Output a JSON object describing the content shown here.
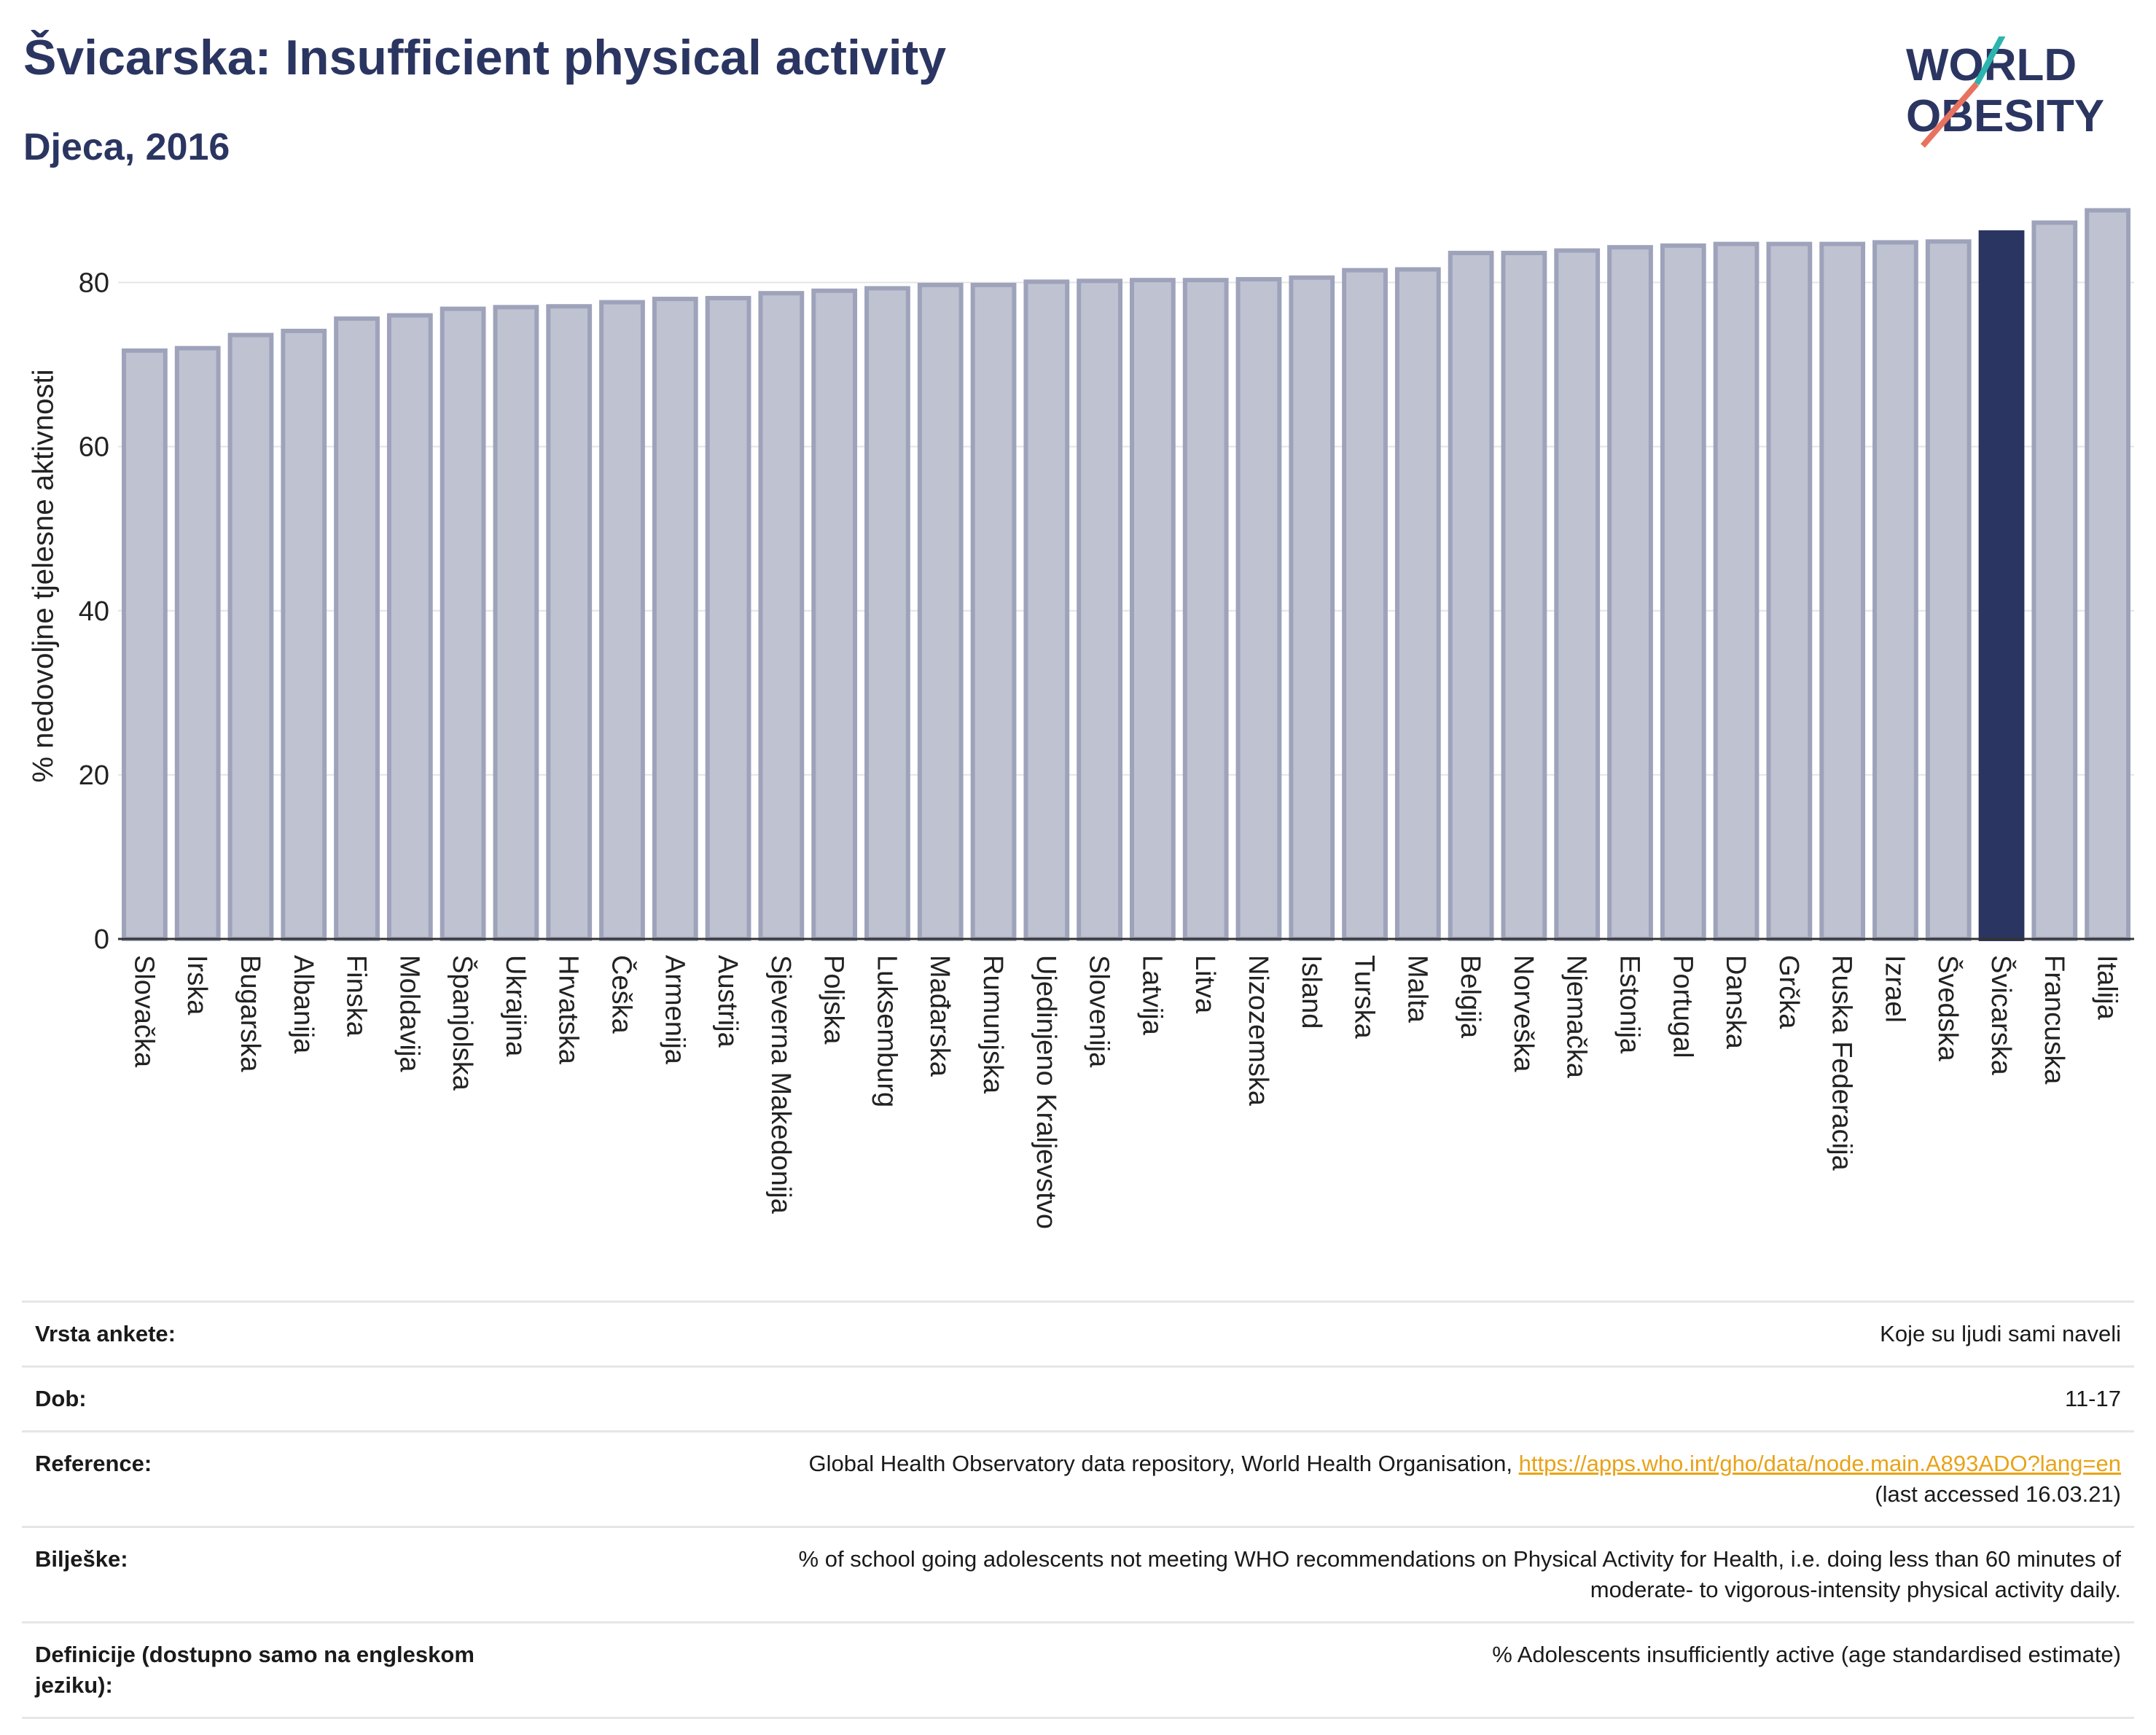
{
  "header": {
    "title": "Švicarska: Insufficient physical activity",
    "subtitle": "Djeca, 2016",
    "logo_line1": "WORLD",
    "logo_line2": "OBESITY"
  },
  "colors": {
    "bar_fill": "#bfc2d0",
    "bar_stroke": "#9ea3bb",
    "highlight": "#2b3561",
    "title": "#2b3561",
    "link": "#e8a317"
  },
  "chart_data": {
    "type": "bar",
    "title": "Švicarska: Insufficient physical activity",
    "subtitle": "Djeca, 2016",
    "ylabel": "% nedovoljne tjelesne aktivnosti",
    "xlabel": "",
    "ylim": [
      0,
      90
    ],
    "yticks": [
      0,
      20,
      40,
      60,
      80
    ],
    "grid": true,
    "highlight": "Švicarska",
    "categories": [
      "Slovačka",
      "Irska",
      "Bugarska",
      "Albanija",
      "Finska",
      "Moldavija",
      "Španjolska",
      "Ukrajina",
      "Hrvatska",
      "Češka",
      "Armenija",
      "Austrija",
      "Sjeverna Makedonija",
      "Poljska",
      "Luksemburg",
      "Mađarska",
      "Rumunjska",
      "Ujedinjeno Kraljevstvo",
      "Slovenija",
      "Latvija",
      "Litva",
      "Nizozemska",
      "Island",
      "Turska",
      "Malta",
      "Belgija",
      "Norveška",
      "Njemačka",
      "Estonija",
      "Portugal",
      "Danska",
      "Grčka",
      "Ruska Federacija",
      "Izrael",
      "Švedska",
      "Švicarska",
      "Francuska",
      "Italija"
    ],
    "values": [
      71.7,
      72.0,
      73.6,
      74.1,
      75.6,
      76.0,
      76.8,
      77.0,
      77.1,
      77.6,
      78.0,
      78.1,
      78.7,
      79.0,
      79.3,
      79.7,
      79.7,
      80.1,
      80.2,
      80.3,
      80.3,
      80.4,
      80.6,
      81.5,
      81.6,
      83.6,
      83.6,
      83.9,
      84.3,
      84.5,
      84.7,
      84.7,
      84.7,
      84.9,
      85.0,
      86.1,
      87.3,
      88.8
    ]
  },
  "info": {
    "rows": [
      {
        "label": "Vrsta ankete:",
        "value": "Koje su ljudi sami naveli"
      },
      {
        "label": "Dob:",
        "value": "11-17"
      },
      {
        "label": "Reference:",
        "value": "Global Health Observatory data repository, World Health Organisation, ",
        "link": "https://apps.who.int/gho/data/node.main.A893ADO?lang=en",
        "value2": "(last accessed 16.03.21)"
      },
      {
        "label": "Bilješke:",
        "value": "% of school going adolescents not meeting WHO recommendations on Physical Activity for Health, i.e. doing less than 60 minutes of",
        "value2": "moderate- to vigorous-intensity physical activity daily."
      },
      {
        "label": "Definicije (dostupno samo na engleskom jeziku):",
        "value": "% Adolescents insufficiently active (age standardised estimate)"
      }
    ]
  }
}
